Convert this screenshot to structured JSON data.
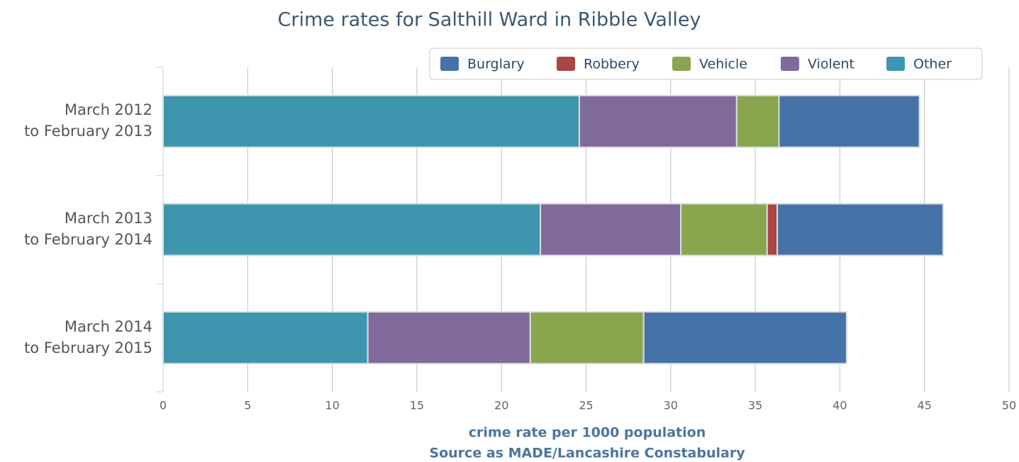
{
  "chart_data": {
    "type": "stacked-bar-horizontal",
    "title": "Crime rates for Salthill Ward in Ribble Valley",
    "xlabel": "crime rate per 1000 population",
    "source": "Source as MADE/Lancashire Constabulary",
    "categories": [
      "March 2012\nto February 2013",
      "March 2013\nto February 2014",
      "March 2014\nto February 2015"
    ],
    "series": [
      {
        "name": "Burglary",
        "color": "#4572a7",
        "values": [
          8.3,
          9.8,
          12.0
        ]
      },
      {
        "name": "Robbery",
        "color": "#aa4643",
        "values": [
          0,
          0.6,
          0
        ]
      },
      {
        "name": "Vehicle",
        "color": "#89a54e",
        "values": [
          2.5,
          5.1,
          6.7
        ]
      },
      {
        "name": "Violent",
        "color": "#80699b",
        "values": [
          9.3,
          8.3,
          9.6
        ]
      },
      {
        "name": "Other",
        "color": "#3d96ae",
        "values": [
          24.6,
          22.3,
          12.1
        ]
      }
    ],
    "xlim": [
      0,
      50
    ],
    "xticks": [
      0,
      5,
      10,
      15,
      20,
      25,
      30,
      35,
      40,
      45,
      50
    ],
    "grid": true,
    "legend": "top-right"
  }
}
